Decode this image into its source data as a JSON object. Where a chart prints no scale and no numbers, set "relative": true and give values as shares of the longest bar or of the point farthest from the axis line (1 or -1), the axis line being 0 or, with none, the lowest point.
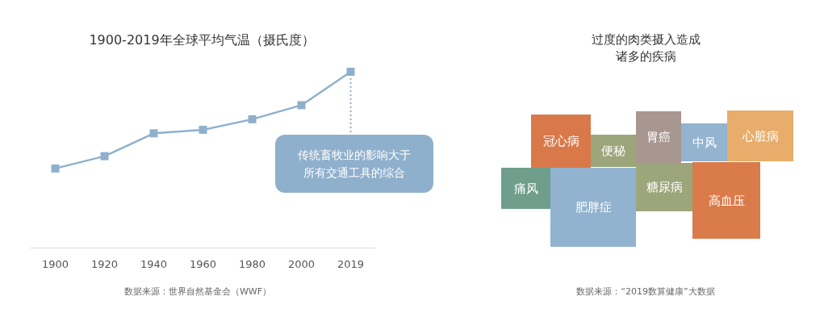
{
  "chart_data": [
    {
      "type": "line",
      "title": "1900-2019年全球平均气温（摄氏度）",
      "relative": true,
      "categories": [
        "1900",
        "1920",
        "1940",
        "1960",
        "1980",
        "2000",
        "2019"
      ],
      "series": [
        {
          "color": "#8fb0cc",
          "values": [
            0.45,
            0.52,
            0.65,
            0.67,
            0.73,
            0.81,
            1
          ]
        }
      ],
      "marker": "square",
      "line_style": "solid",
      "grid": false,
      "annotations": [
        {
          "text": "传统畜牧业的影响大于所有交通工具的综合",
          "x": "2019",
          "y": 1
        },
        "数据来源：世界自然基金会（WWF）"
      ]
    },
    {
      "type": "other",
      "title": "过度的肉类摄入造成诸多的疾病",
      "categories": [
        "冠心病",
        "便秘",
        "胃癌",
        "中风",
        "心脏病",
        "痛风",
        "肥胖症",
        "糖尿病",
        "高血压"
      ],
      "colors": [
        "#d9794a",
        "#9da57a",
        "#a89690",
        "#93b3cf",
        "#e8ad6a",
        "#6f9e8c",
        "#92b3cf",
        "#9da57a",
        "#da7b4a"
      ],
      "annotations": [
        "数据来源：“2019数算健康”大数据"
      ]
    }
  ]
}
